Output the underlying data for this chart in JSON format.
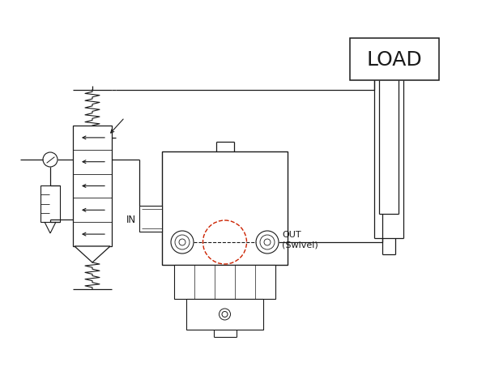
{
  "bg_color": "#ffffff",
  "line_color": "#1a1a1a",
  "red_dash_color": "#cc2200",
  "load_text": "LOAD",
  "in_text": "IN",
  "out_text": "OUT\n(Swivel)"
}
